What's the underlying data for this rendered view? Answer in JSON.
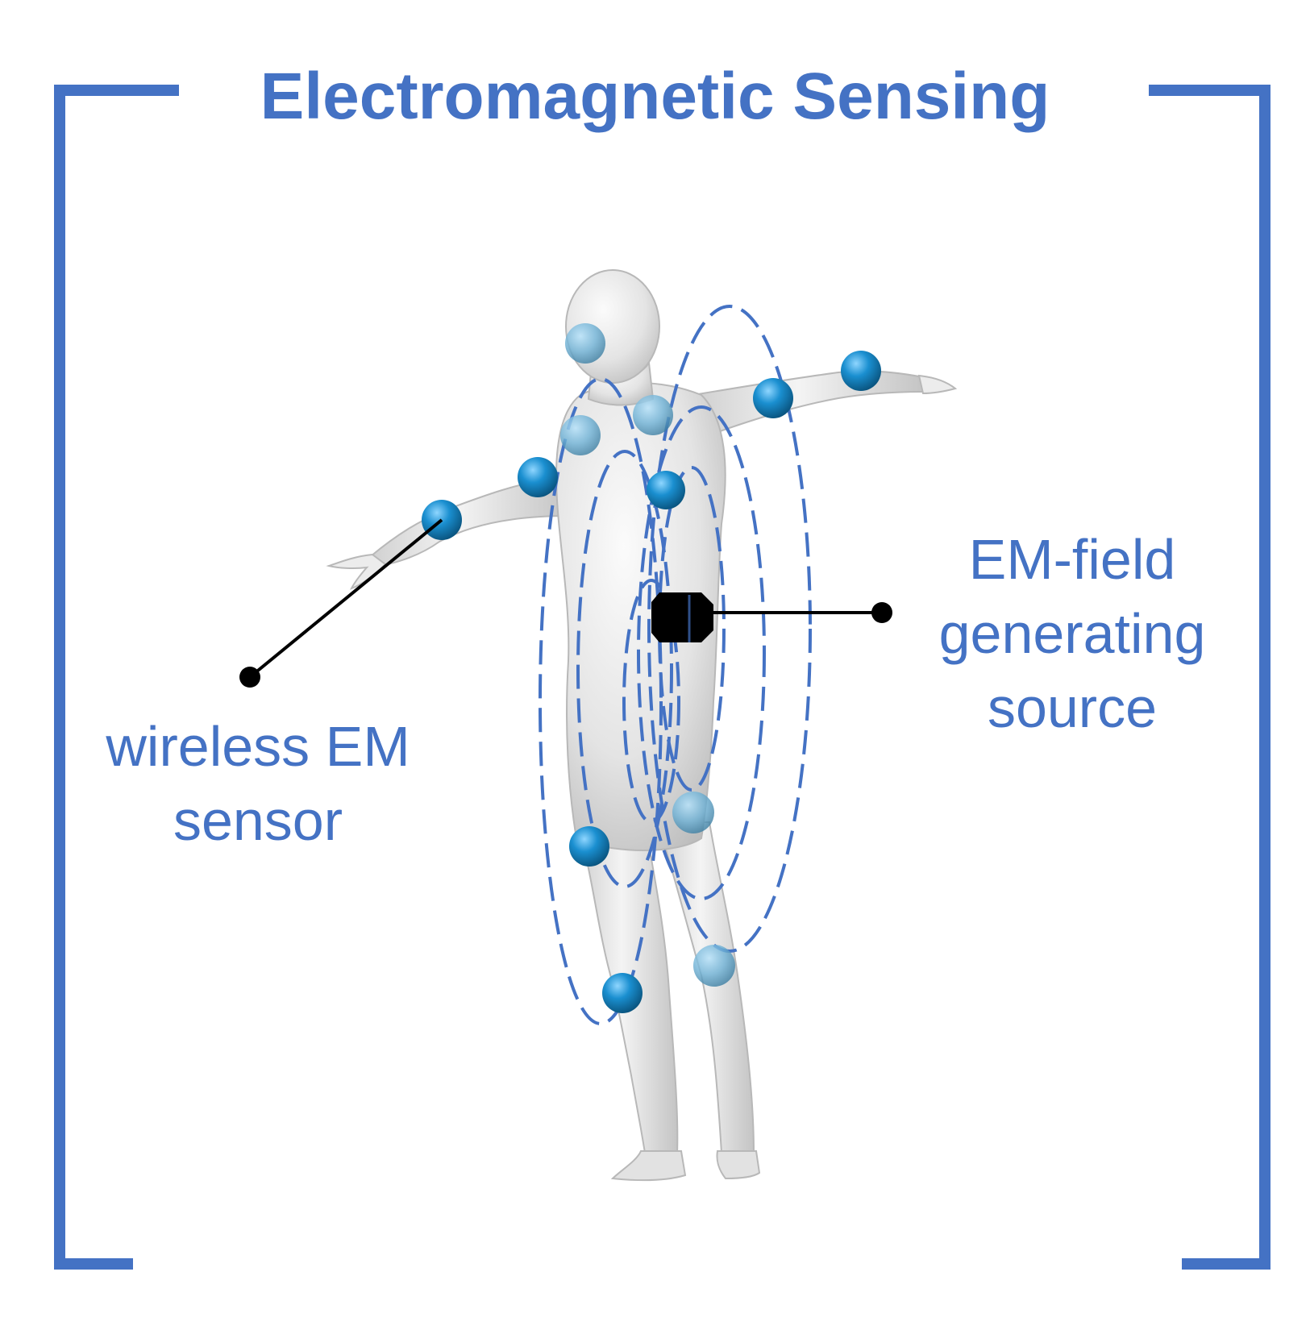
{
  "title": "Electromagnetic Sensing",
  "labels": {
    "sensor": [
      "wireless EM",
      "sensor"
    ],
    "source": [
      "EM-field",
      "generating",
      "source"
    ]
  },
  "colors": {
    "accent": "#4472c4",
    "sensor_ball": "#1a8fd0",
    "body": "#e8e8e8",
    "source_box": "#000000",
    "leader_line": "#000000"
  },
  "icons": {
    "bracket_left": "bracket-left",
    "bracket_right": "bracket-right",
    "figure": "human-figure",
    "sensor": "sensor-sphere",
    "source": "em-source-box"
  }
}
